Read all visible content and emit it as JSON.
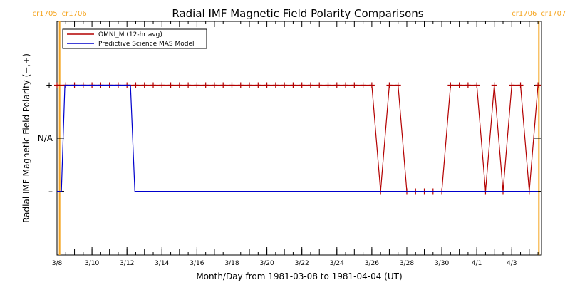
{
  "chart_data": {
    "type": "line",
    "title": "Radial IMF Magnetic Field Polarity Comparisons",
    "xlabel": "Month/Day from 1981-03-08 to 1981-04-04 (UT)",
    "ylabel": "Radial IMF Magnetic Field Polarity (−,+)",
    "x_range_days": [
      0,
      27.7
    ],
    "x_ticks": [
      {
        "day": 0,
        "label": "3/8"
      },
      {
        "day": 2,
        "label": "3/10"
      },
      {
        "day": 4,
        "label": "3/12"
      },
      {
        "day": 6,
        "label": "3/14"
      },
      {
        "day": 8,
        "label": "3/16"
      },
      {
        "day": 10,
        "label": "3/18"
      },
      {
        "day": 12,
        "label": "3/20"
      },
      {
        "day": 14,
        "label": "3/22"
      },
      {
        "day": 16,
        "label": "3/24"
      },
      {
        "day": 18,
        "label": "3/26"
      },
      {
        "day": 20,
        "label": "3/28"
      },
      {
        "day": 22,
        "label": "3/30"
      },
      {
        "day": 24,
        "label": "4/1"
      },
      {
        "day": 26,
        "label": "4/3"
      }
    ],
    "y_range": [
      -2.2,
      2.2
    ],
    "y_ticks": [
      {
        "value": 1,
        "label": "+"
      },
      {
        "value": 0,
        "label": "N/A"
      },
      {
        "value": -1,
        "label": "–"
      }
    ],
    "carrington_markers": [
      {
        "day": 0.15,
        "left_label": "cr1705",
        "right_label": "cr1706",
        "color": "#f5a623"
      },
      {
        "day": 27.55,
        "left_label": "cr1706",
        "right_label": "cr1707",
        "color": "#f5a623"
      }
    ],
    "legend_position": "top-left",
    "series": [
      {
        "name": "OMNI_M (12-hr avg)",
        "color": "#b30000",
        "markers": true,
        "points": [
          [
            0.0,
            1
          ],
          [
            0.5,
            1
          ],
          [
            1.0,
            1
          ],
          [
            1.5,
            1
          ],
          [
            2.0,
            1
          ],
          [
            2.5,
            1
          ],
          [
            3.0,
            1
          ],
          [
            3.5,
            1
          ],
          [
            4.0,
            1
          ],
          [
            4.5,
            1
          ],
          [
            5.0,
            1
          ],
          [
            5.5,
            1
          ],
          [
            6.0,
            1
          ],
          [
            6.5,
            1
          ],
          [
            7.0,
            1
          ],
          [
            7.5,
            1
          ],
          [
            8.0,
            1
          ],
          [
            8.5,
            1
          ],
          [
            9.0,
            1
          ],
          [
            9.5,
            1
          ],
          [
            10.0,
            1
          ],
          [
            10.5,
            1
          ],
          [
            11.0,
            1
          ],
          [
            11.5,
            1
          ],
          [
            12.0,
            1
          ],
          [
            12.5,
            1
          ],
          [
            13.0,
            1
          ],
          [
            13.5,
            1
          ],
          [
            14.0,
            1
          ],
          [
            14.5,
            1
          ],
          [
            15.0,
            1
          ],
          [
            15.5,
            1
          ],
          [
            16.0,
            1
          ],
          [
            16.5,
            1
          ],
          [
            17.0,
            1
          ],
          [
            17.5,
            1
          ],
          [
            18.0,
            1
          ],
          [
            18.5,
            -1
          ],
          [
            19.0,
            1
          ],
          [
            19.5,
            1
          ],
          [
            20.0,
            -1
          ],
          [
            20.5,
            -1
          ],
          [
            21.0,
            -1
          ],
          [
            21.5,
            -1
          ],
          [
            22.0,
            -1
          ],
          [
            22.5,
            1
          ],
          [
            23.0,
            1
          ],
          [
            23.5,
            1
          ],
          [
            24.0,
            1
          ],
          [
            24.5,
            -1
          ],
          [
            25.0,
            1
          ],
          [
            25.5,
            -1
          ],
          [
            26.0,
            1
          ],
          [
            26.5,
            1
          ],
          [
            27.0,
            -1
          ],
          [
            27.5,
            1
          ]
        ]
      },
      {
        "name": "Predictive Science MAS Model",
        "color": "#0000cc",
        "markers": false,
        "points": [
          [
            0.0,
            -1
          ],
          [
            0.25,
            -1
          ],
          [
            0.45,
            1
          ],
          [
            4.2,
            1
          ],
          [
            4.45,
            -1
          ],
          [
            27.5,
            -1
          ]
        ]
      }
    ]
  }
}
